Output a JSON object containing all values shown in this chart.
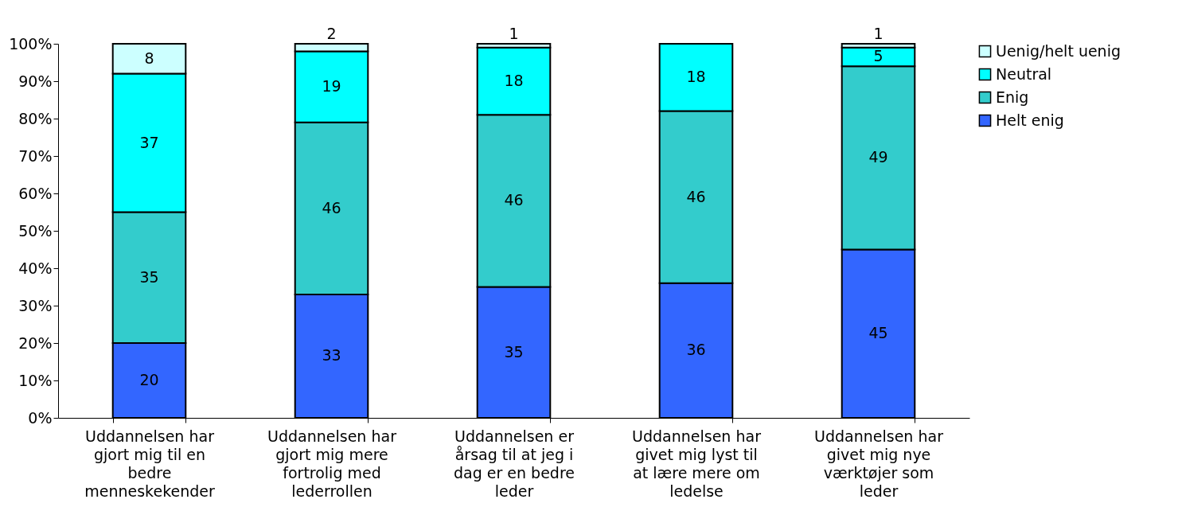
{
  "chart_data": {
    "type": "bar",
    "stacked": true,
    "data_labels": true,
    "legend": "right",
    "grid": false,
    "categories": [
      "Uddannelsen har gjort mig til en bedre menneskekender",
      "Uddannelsen har gjort mig mere fortrolig med lederrollen",
      "Uddannelsen er årsag til at jeg i dag er en bedre leder",
      "Uddannelsen har givet mig lyst til at lære mere om ledelse",
      "Uddannelsen har givet mig nye værktøjer som leder"
    ],
    "ylim": [
      0,
      100
    ],
    "yticks": [
      {
        "value": 0,
        "label": "0%"
      },
      {
        "value": 10,
        "label": "10%"
      },
      {
        "value": 20,
        "label": "20%"
      },
      {
        "value": 30,
        "label": "30%"
      },
      {
        "value": 40,
        "label": "40%"
      },
      {
        "value": 50,
        "label": "50%"
      },
      {
        "value": 60,
        "label": "60%"
      },
      {
        "value": 70,
        "label": "70%"
      },
      {
        "value": 80,
        "label": "80%"
      },
      {
        "value": 90,
        "label": "90%"
      },
      {
        "value": 100,
        "label": "100%"
      }
    ],
    "series": [
      {
        "name": "Helt enig",
        "color": "#3366ff",
        "values": [
          20,
          33,
          35,
          36,
          45
        ]
      },
      {
        "name": "Enig",
        "color": "#33cccc",
        "values": [
          35,
          46,
          46,
          46,
          49
        ]
      },
      {
        "name": "Neutral",
        "color": "#00ffff",
        "values": [
          37,
          19,
          18,
          18,
          5
        ]
      },
      {
        "name": "Uenig/helt uenig",
        "color": "#ccffff",
        "values": [
          8,
          2,
          1,
          null,
          1
        ]
      }
    ]
  }
}
